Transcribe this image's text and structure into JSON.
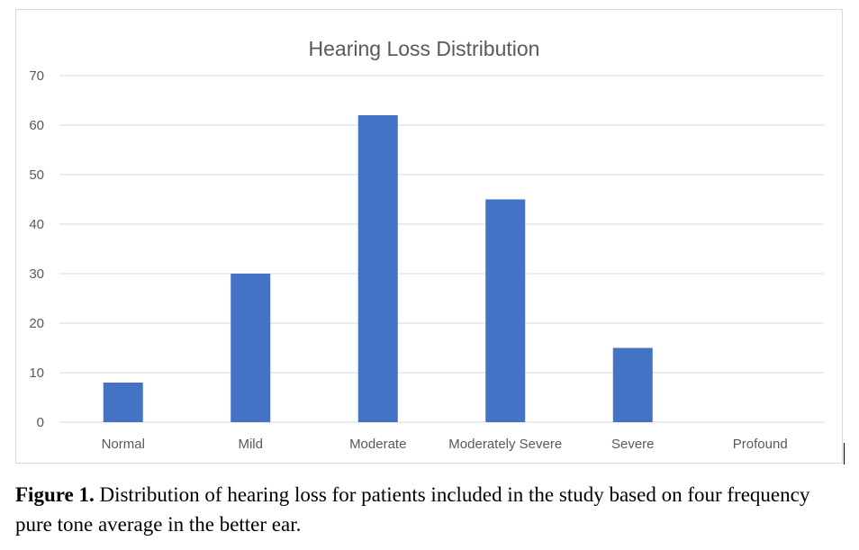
{
  "chart_data": {
    "type": "bar",
    "title": "Hearing Loss Distribution",
    "categories": [
      "Normal",
      "Mild",
      "Moderate",
      "Moderately Severe",
      "Severe",
      "Profound"
    ],
    "values": [
      8,
      30,
      62,
      45,
      15,
      0
    ],
    "ylim": [
      0,
      70
    ],
    "yticks": [
      0,
      10,
      20,
      30,
      40,
      50,
      60,
      70
    ],
    "xlabel": "",
    "ylabel": "",
    "grid": true,
    "legend": "none",
    "bar_color": "#4472c4",
    "grid_color": "#d9d9d9"
  },
  "caption": {
    "label": "Figure 1.",
    "text": " Distribution of hearing loss for patients included in the study based on four frequency pure tone average in the better ear."
  }
}
